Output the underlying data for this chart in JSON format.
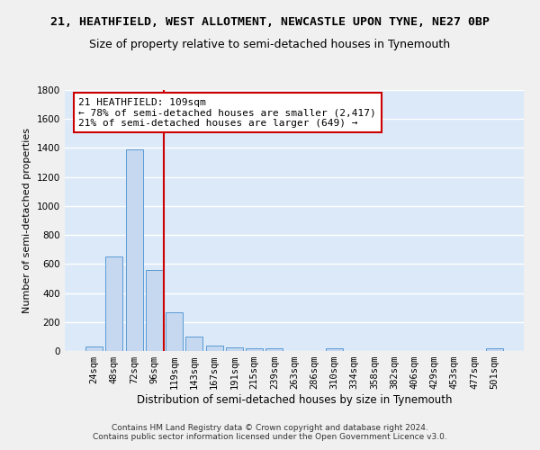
{
  "title1": "21, HEATHFIELD, WEST ALLOTMENT, NEWCASTLE UPON TYNE, NE27 0BP",
  "title2": "Size of property relative to semi-detached houses in Tynemouth",
  "xlabel": "Distribution of semi-detached houses by size in Tynemouth",
  "ylabel": "Number of semi-detached properties",
  "categories": [
    "24sqm",
    "48sqm",
    "72sqm",
    "96sqm",
    "119sqm",
    "143sqm",
    "167sqm",
    "191sqm",
    "215sqm",
    "239sqm",
    "263sqm",
    "286sqm",
    "310sqm",
    "334sqm",
    "358sqm",
    "382sqm",
    "406sqm",
    "429sqm",
    "453sqm",
    "477sqm",
    "501sqm"
  ],
  "values": [
    30,
    650,
    1390,
    560,
    265,
    100,
    40,
    25,
    20,
    20,
    0,
    0,
    20,
    0,
    0,
    0,
    0,
    0,
    0,
    0,
    20
  ],
  "bar_color": "#c5d8f0",
  "bar_edge_color": "#5b9bd5",
  "highlight_line_color": "#cc0000",
  "annotation_line1": "21 HEATHFIELD: 109sqm",
  "annotation_line2": "← 78% of semi-detached houses are smaller (2,417)",
  "annotation_line3": "21% of semi-detached houses are larger (649) →",
  "annotation_box_color": "#ffffff",
  "annotation_box_edge": "#cc0000",
  "ylim": [
    0,
    1800
  ],
  "yticks": [
    0,
    200,
    400,
    600,
    800,
    1000,
    1200,
    1400,
    1600,
    1800
  ],
  "footer": "Contains HM Land Registry data © Crown copyright and database right 2024.\nContains public sector information licensed under the Open Government Licence v3.0.",
  "bg_color": "#dce9f8",
  "fig_bg_color": "#f0f0f0",
  "grid_color": "#ffffff",
  "title1_fontsize": 9.5,
  "title2_fontsize": 9,
  "xlabel_fontsize": 8.5,
  "ylabel_fontsize": 8,
  "tick_fontsize": 7.5,
  "annotation_fontsize": 8,
  "footer_fontsize": 6.5
}
